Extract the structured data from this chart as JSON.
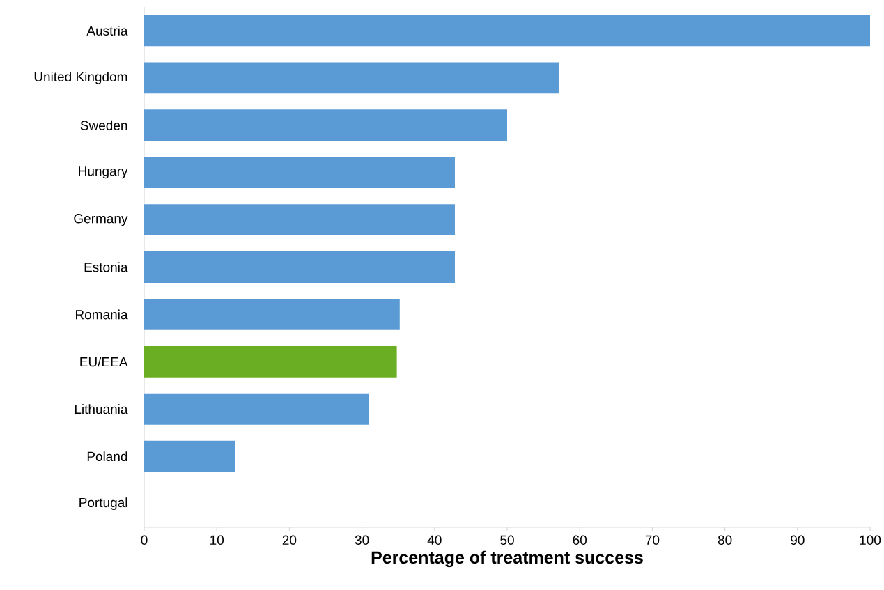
{
  "chart_data": {
    "type": "bar",
    "orientation": "horizontal",
    "xlabel": "Percentage of treatment success",
    "categories": [
      "Austria",
      "United Kingdom",
      "Sweden",
      "Hungary",
      "Germany",
      "Estonia",
      "Romania",
      "EU/EEA",
      "Lithuania",
      "Poland",
      "Portugal"
    ],
    "values": [
      100,
      57.1,
      50,
      42.8,
      42.8,
      42.8,
      35.2,
      34.8,
      31,
      12.5,
      0
    ],
    "colors": [
      "#5b9bd5",
      "#5b9bd5",
      "#5b9bd5",
      "#5b9bd5",
      "#5b9bd5",
      "#5b9bd5",
      "#5b9bd5",
      "#6aaf23",
      "#5b9bd5",
      "#5b9bd5",
      "#5b9bd5"
    ],
    "xlim": [
      0,
      100
    ],
    "xticks": [
      0,
      10,
      20,
      30,
      40,
      50,
      60,
      70,
      80,
      90,
      100
    ]
  }
}
